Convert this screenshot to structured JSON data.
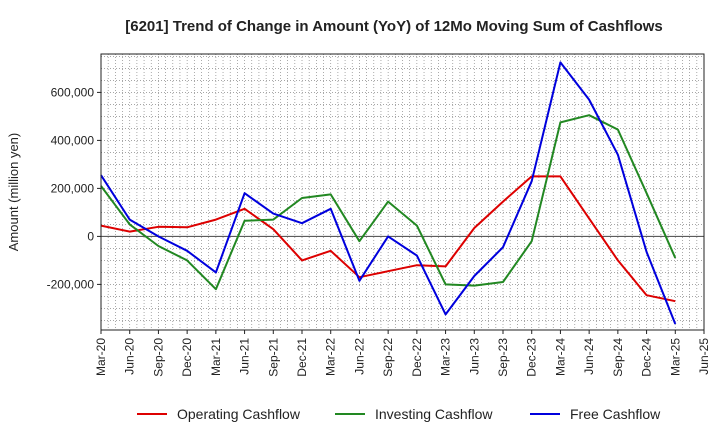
{
  "chart_data": {
    "type": "line",
    "title": "[6201]  Trend of Change in Amount (YoY) of 12Mo Moving Sum of Cashflows",
    "xlabel": "",
    "ylabel": "Amount (million yen)",
    "ylim": [
      -390000,
      760000
    ],
    "yticks": [
      -200000,
      0,
      200000,
      400000,
      600000
    ],
    "ytick_labels": [
      "-200,000",
      "0",
      "200,000",
      "400,000",
      "600,000"
    ],
    "categories": [
      "Mar-20",
      "Jun-20",
      "Sep-20",
      "Dec-20",
      "Mar-21",
      "Jun-21",
      "Sep-21",
      "Dec-21",
      "Mar-22",
      "Jun-22",
      "Sep-22",
      "Dec-22",
      "Mar-23",
      "Jun-23",
      "Sep-23",
      "Dec-23",
      "Mar-24",
      "Jun-24",
      "Sep-24",
      "Dec-24",
      "Mar-25",
      "Jun-25"
    ],
    "grid": true,
    "legend_position": "bottom",
    "series": [
      {
        "name": "Operating Cashflow",
        "color": "#dd0000",
        "values": [
          45000,
          20000,
          40000,
          38000,
          70000,
          115000,
          30000,
          -100000,
          -60000,
          -170000,
          -145000,
          -120000,
          -125000,
          35000,
          145000,
          250000,
          250000,
          75000,
          -100000,
          -245000,
          -270000,
          null
        ]
      },
      {
        "name": "Investing Cashflow",
        "color": "#228822",
        "values": [
          210000,
          50000,
          -40000,
          -100000,
          -220000,
          65000,
          70000,
          160000,
          175000,
          -20000,
          145000,
          45000,
          -200000,
          -205000,
          -190000,
          -20000,
          475000,
          505000,
          445000,
          180000,
          -90000,
          null
        ]
      },
      {
        "name": "Free Cashflow",
        "color": "#0000dd",
        "values": [
          255000,
          70000,
          0,
          -60000,
          -150000,
          180000,
          95000,
          55000,
          115000,
          -185000,
          0,
          -80000,
          -325000,
          -165000,
          -45000,
          230000,
          725000,
          570000,
          340000,
          -65000,
          -365000,
          null
        ]
      }
    ]
  }
}
